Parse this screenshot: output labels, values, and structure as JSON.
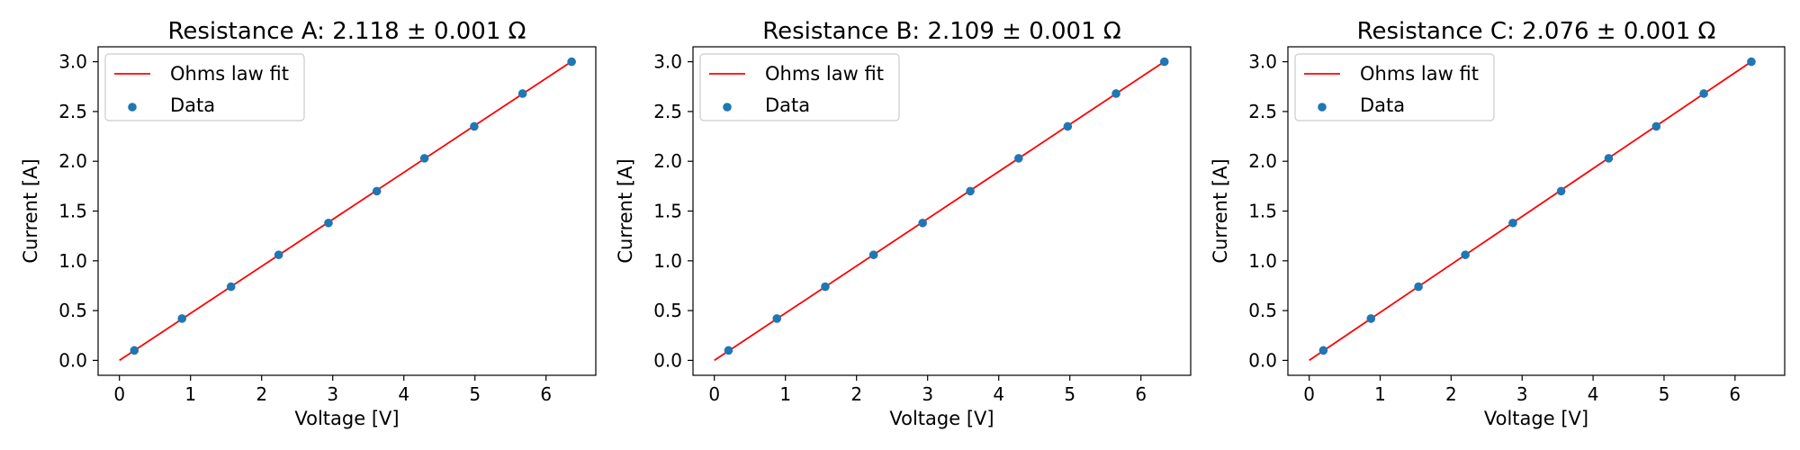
{
  "chart_data": [
    {
      "type": "scatter",
      "title": "Resistance A: 2.118 ± 0.001 Ω",
      "xlabel": "Voltage [V]",
      "ylabel": "Current [A]",
      "xlim": [
        -0.3,
        6.7
      ],
      "ylim": [
        -0.15,
        3.15
      ],
      "xticks": [
        0,
        1,
        2,
        3,
        4,
        5,
        6
      ],
      "yticks": [
        0.0,
        0.5,
        1.0,
        1.5,
        2.0,
        2.5,
        3.0
      ],
      "legend_position": "top-left",
      "grid": false,
      "series": [
        {
          "name": "Ohms law fit",
          "kind": "line",
          "color": "#ff0000",
          "x": [
            0,
            6.354
          ],
          "y": [
            0,
            3.0
          ]
        },
        {
          "name": "Data",
          "kind": "scatter",
          "color": "#1f77b4",
          "x": [
            0.21,
            0.88,
            1.57,
            2.24,
            2.94,
            3.62,
            4.29,
            4.99,
            5.67,
            6.36
          ],
          "y": [
            0.1,
            0.42,
            0.74,
            1.06,
            1.38,
            1.7,
            2.03,
            2.35,
            2.68,
            3.0
          ]
        }
      ]
    },
    {
      "type": "scatter",
      "title": "Resistance B: 2.109 ± 0.001 Ω",
      "xlabel": "Voltage [V]",
      "ylabel": "Current [A]",
      "xlim": [
        -0.3,
        6.7
      ],
      "ylim": [
        -0.15,
        3.15
      ],
      "xticks": [
        0,
        1,
        2,
        3,
        4,
        5,
        6
      ],
      "yticks": [
        0.0,
        0.5,
        1.0,
        1.5,
        2.0,
        2.5,
        3.0
      ],
      "legend_position": "top-left",
      "grid": false,
      "series": [
        {
          "name": "Ohms law fit",
          "kind": "line",
          "color": "#ff0000",
          "x": [
            0,
            6.327
          ],
          "y": [
            0,
            3.0
          ]
        },
        {
          "name": "Data",
          "kind": "scatter",
          "color": "#1f77b4",
          "x": [
            0.2,
            0.88,
            1.56,
            2.24,
            2.93,
            3.6,
            4.28,
            4.97,
            5.65,
            6.33
          ],
          "y": [
            0.1,
            0.42,
            0.74,
            1.06,
            1.38,
            1.7,
            2.03,
            2.35,
            2.68,
            3.0
          ]
        }
      ]
    },
    {
      "type": "scatter",
      "title": "Resistance C: 2.076 ± 0.001 Ω",
      "xlabel": "Voltage [V]",
      "ylabel": "Current [A]",
      "xlim": [
        -0.3,
        6.7
      ],
      "ylim": [
        -0.15,
        3.15
      ],
      "xticks": [
        0,
        1,
        2,
        3,
        4,
        5,
        6
      ],
      "yticks": [
        0.0,
        0.5,
        1.0,
        1.5,
        2.0,
        2.5,
        3.0
      ],
      "legend_position": "top-left",
      "grid": false,
      "series": [
        {
          "name": "Ohms law fit",
          "kind": "line",
          "color": "#ff0000",
          "x": [
            0,
            6.228
          ],
          "y": [
            0,
            3.0
          ]
        },
        {
          "name": "Data",
          "kind": "scatter",
          "color": "#1f77b4",
          "x": [
            0.2,
            0.87,
            1.54,
            2.2,
            2.87,
            3.55,
            4.22,
            4.89,
            5.56,
            6.23
          ],
          "y": [
            0.1,
            0.42,
            0.74,
            1.06,
            1.38,
            1.7,
            2.03,
            2.35,
            2.68,
            3.0
          ]
        }
      ]
    }
  ]
}
